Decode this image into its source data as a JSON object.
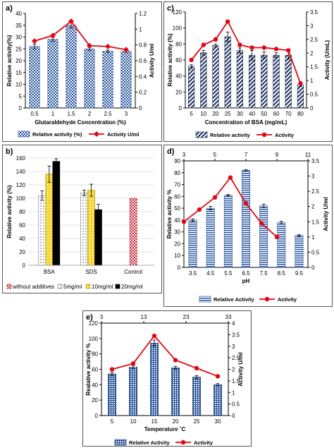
{
  "colors": {
    "line": "#e30613",
    "bar_blue": "#1f4e9a",
    "bar_navy": "#1c2f5a",
    "bar_red": "#c0202f",
    "bar_yellow": "#ffe24a",
    "bar_black": "#000000",
    "grid": "#999999"
  },
  "chart_data": [
    {
      "panel": "a)",
      "type": "bar",
      "categories": [
        "0.5",
        "1",
        "1.5",
        "2",
        "2.5",
        "3"
      ],
      "series": [
        {
          "name": "Relative activity (%)",
          "type": "bar",
          "axis": "left",
          "values": [
            26,
            29,
            35,
            25,
            24,
            24
          ],
          "errors": [
            1,
            0.8,
            1.2,
            0.6,
            0.5,
            0.5
          ]
        },
        {
          "name": "Activity U/ml",
          "type": "line",
          "axis": "right",
          "values": [
            0.85,
            0.92,
            1.1,
            0.79,
            0.78,
            0.74
          ]
        }
      ],
      "xlabel": "Glutaraldehyde Concentration (%)",
      "ylabel": "Relative activity(%)",
      "y2label": "Activity U/ml",
      "ylim": [
        0,
        40
      ],
      "yticks": [
        "0",
        "5",
        "10",
        "15",
        "20",
        "25",
        "30",
        "35",
        "40"
      ],
      "y2lim": [
        0,
        1.2
      ],
      "y2ticks": [
        "0",
        "0.2",
        "0.4",
        "0.6",
        "0.8",
        "1",
        "1.2"
      ],
      "legend_position": "bottom"
    },
    {
      "panel": "b)",
      "type": "bar",
      "categories": [
        "BSA",
        "SDS",
        "Control"
      ],
      "series": [
        {
          "name": "without additives",
          "values": [
            null,
            null,
            100
          ]
        },
        {
          "name": "5mg/ml",
          "values": [
            104,
            108,
            null
          ],
          "errors": [
            7,
            4,
            null
          ]
        },
        {
          "name": "10mg/ml",
          "values": [
            136,
            112,
            null
          ],
          "errors": [
            12,
            9,
            null
          ]
        },
        {
          "name": "20mg/ml",
          "values": [
            155,
            83,
            null
          ],
          "errors": [
            4,
            8,
            null
          ]
        }
      ],
      "ylabel": "Relative avtivity (%)",
      "ylim": [
        0,
        160
      ],
      "yticks": [
        "0",
        "20",
        "40",
        "60",
        "80",
        "100",
        "120",
        "140",
        "160"
      ],
      "legend_position": "bottom"
    },
    {
      "panel": "c)",
      "type": "bar",
      "categories": [
        "5",
        "10",
        "20",
        "25",
        "30",
        "40",
        "50",
        "60",
        "70",
        "80"
      ],
      "series": [
        {
          "name": "Relative activity",
          "type": "bar",
          "axis": "left",
          "values": [
            52,
            69,
            78,
            89,
            72,
            66,
            66,
            66,
            66,
            29
          ],
          "errors": [
            2,
            3,
            2,
            6,
            3,
            6,
            4,
            3,
            5,
            2
          ]
        },
        {
          "name": "Activity",
          "type": "line",
          "axis": "right",
          "values": [
            1.75,
            2.3,
            2.5,
            3.15,
            2.3,
            2.2,
            2.2,
            2.15,
            2.1,
            0.9
          ]
        }
      ],
      "xlabel": "Concentration of BSA  (mg/mL)",
      "ylabel": "Relative activity (%)",
      "y2label": "Activity (U/mL)",
      "ylim": [
        0,
        120
      ],
      "yticks": [
        "0",
        "20",
        "40",
        "60",
        "80",
        "100",
        "120"
      ],
      "y2lim": [
        0,
        3.5
      ],
      "y2ticks": [
        "0",
        "0.5",
        "1",
        "1.5",
        "2",
        "2.5",
        "3",
        "3.5"
      ],
      "legend_position": "bottom"
    },
    {
      "panel": "d)",
      "type": "bar",
      "categories": [
        "3.5",
        "4.5",
        "5.5",
        "6.5",
        "7.5",
        "8.5",
        "9.5"
      ],
      "top_ticks": [
        "3",
        "5",
        "7",
        "9",
        "11"
      ],
      "series": [
        {
          "name": "Relative Activity",
          "type": "bar",
          "axis": "left",
          "values": [
            40,
            50,
            61,
            82,
            52,
            38,
            27
          ],
          "errors": [
            1,
            1.5,
            0.5,
            0.5,
            1.5,
            1,
            0.5
          ]
        },
        {
          "name": "Activity",
          "type": "line",
          "axis": "right",
          "x": [
            3,
            4,
            5,
            6,
            7,
            8,
            9
          ],
          "values": [
            1.5,
            1.9,
            2.3,
            2.95,
            2.1,
            1.45,
            1.0
          ]
        }
      ],
      "xlabel": "pH",
      "ylabel": "Relative activity %",
      "y2label": "Activity U/ml",
      "ylim": [
        0,
        90
      ],
      "yticks": [
        "0",
        "10",
        "20",
        "30",
        "40",
        "50",
        "60",
        "70",
        "80",
        "90"
      ],
      "y2lim": [
        0,
        3.5
      ],
      "y2ticks": [
        "0",
        "0.5",
        "1",
        "1.5",
        "2",
        "2.5",
        "3",
        "3.5"
      ],
      "legend_position": "bottom"
    },
    {
      "panel": "e)",
      "type": "bar",
      "categories": [
        "5",
        "10",
        "15",
        "20",
        "25",
        "30"
      ],
      "top_ticks": [
        "3",
        "13",
        "23",
        "33"
      ],
      "series": [
        {
          "name": "Relative Activity",
          "type": "bar",
          "axis": "left",
          "values": [
            54,
            63,
            94,
            62,
            50,
            40
          ],
          "errors": [
            2,
            2,
            4,
            2,
            2,
            1.5
          ]
        },
        {
          "name": "Activity",
          "type": "line",
          "axis": "right",
          "values": [
            2.0,
            2.25,
            3.45,
            2.4,
            2.05,
            1.7
          ]
        }
      ],
      "xlabel": "Temperature ˚C",
      "ylabel": "Realative activity %",
      "y2label": "Activity U/ml",
      "ylim": [
        0,
        120
      ],
      "yticks": [
        "0",
        "20",
        "40",
        "60",
        "80",
        "100",
        "120"
      ],
      "y2lim": [
        0,
        4
      ],
      "y2ticks": [
        "0",
        "0.5",
        "1",
        "1.5",
        "2",
        "2.5",
        "3",
        "3.5",
        "4"
      ],
      "legend_position": "bottom"
    }
  ]
}
